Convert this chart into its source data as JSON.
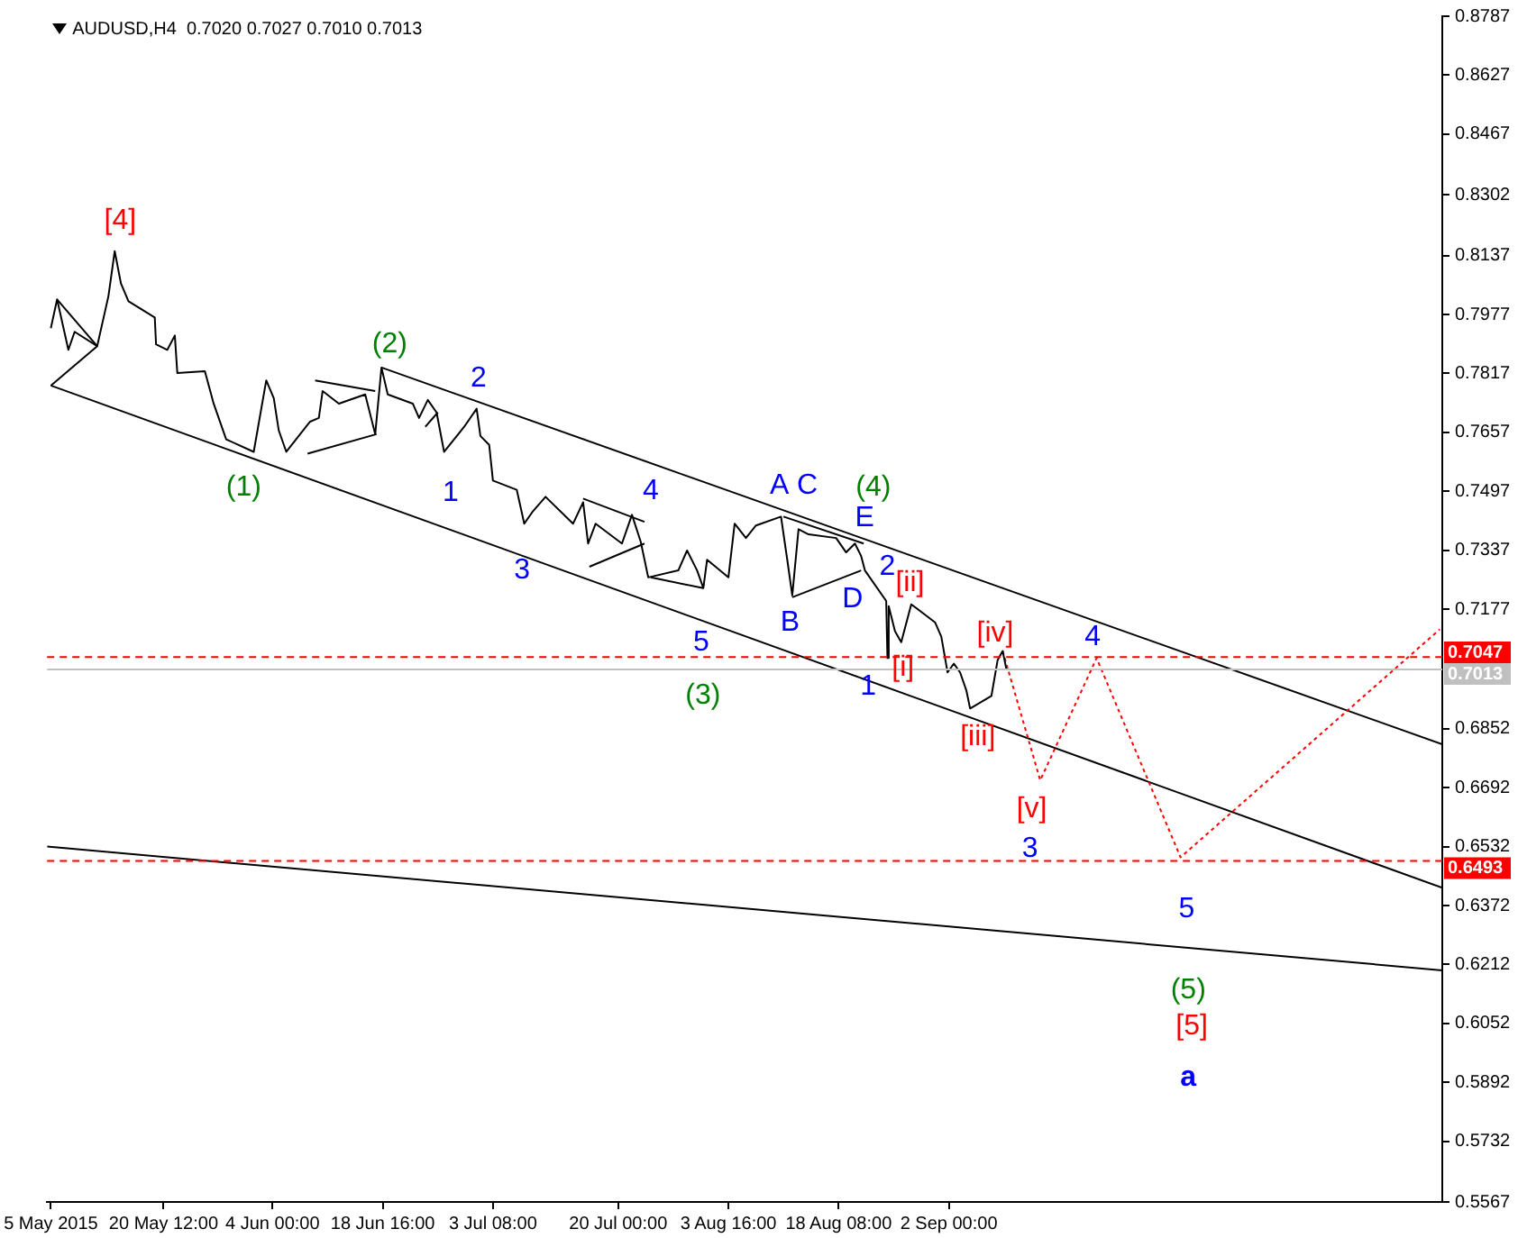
{
  "chart_data": {
    "type": "line",
    "title": "AUDUSD,H4  0.7020 0.7027 0.7010 0.7013",
    "xlim": [
      "2015-05-05T00:00",
      "2015-11-06T16:00"
    ],
    "xticks": [
      {
        "value": "2015-05-05T12:00",
        "label": "5 May 2015"
      },
      {
        "value": "2015-05-20T12:00",
        "label": "20 May 12:00"
      },
      {
        "value": "2015-06-04T00:00",
        "label": "4 Jun 00:00"
      },
      {
        "value": "2015-06-18T16:00",
        "label": "18 Jun 16:00"
      },
      {
        "value": "2015-07-03T08:00",
        "label": "3 Jul 08:00"
      },
      {
        "value": "2015-07-20T00:00",
        "label": "20 Jul 00:00"
      },
      {
        "value": "2015-08-03T16:00",
        "label": "3 Aug 16:00"
      },
      {
        "value": "2015-08-18T08:00",
        "label": "18 Aug 08:00"
      },
      {
        "value": "2015-09-02T00:00",
        "label": "2 Sep 00:00"
      }
    ],
    "ylim": [
      0.5567,
      0.8787
    ],
    "yticks": [
      0.5567,
      0.5732,
      0.5892,
      0.6052,
      0.6212,
      0.6372,
      0.6532,
      0.6692,
      0.6852,
      0.7177,
      0.7337,
      0.7497,
      0.7657,
      0.7817,
      0.7977,
      0.8137,
      0.8302,
      0.8467,
      0.8627,
      0.8787
    ],
    "grid": false,
    "legend": false,
    "marker": "none",
    "series": [
      {
        "color": "#000000",
        "x": [
          "2015-05-05T12:00",
          "2015-05-06T08:00",
          "2015-05-07T20:00",
          "2015-05-08T16:00",
          "2015-05-11T16:00",
          "2015-05-13T04:00",
          "2015-05-14T00:00",
          "2015-05-14T20:00",
          "2015-05-15T20:00",
          "2015-05-19T08:00",
          "2015-05-19T12:00",
          "2015-05-21T00:00",
          "2015-05-22T00:00",
          "2015-05-22T08:00",
          "2015-05-26T00:00",
          "2015-05-27T04:00",
          "2015-05-28T20:00",
          "2015-06-01T12:00",
          "2015-06-03T04:00",
          "2015-06-04T04:00",
          "2015-06-04T20:00",
          "2015-06-05T20:00",
          "2015-06-09T00:00",
          "2015-06-10T04:00",
          "2015-06-10T16:00",
          "2015-06-12T20:00",
          "2015-06-16T08:00",
          "2015-06-17T16:00",
          "2015-06-18T12:00",
          "2015-06-19T08:00",
          "2015-06-22T16:00",
          "2015-06-23T12:00",
          "2015-06-24T16:00",
          "2015-06-25T20:00",
          "2015-06-26T20:00",
          "2015-06-29T12:00",
          "2015-07-01T04:00",
          "2015-07-01T16:00",
          "2015-07-02T20:00",
          "2015-07-03T08:00",
          "2015-07-06T12:00",
          "2015-07-07T12:00",
          "2015-07-08T16:00",
          "2015-07-10T08:00",
          "2015-07-14T00:00",
          "2015-07-15T08:00",
          "2015-07-16T00:00",
          "2015-07-17T00:00",
          "2015-07-20T12:00",
          "2015-07-21T20:00",
          "2015-07-23T00:00",
          "2015-07-24T00:00",
          "2015-07-28T00:00",
          "2015-07-29T04:00",
          "2015-07-30T12:00",
          "2015-07-31T08:00",
          "2015-07-31T20:00",
          "2015-08-03T16:00",
          "2015-08-04T12:00",
          "2015-08-06T00:00",
          "2015-08-07T08:00",
          "2015-08-10T16:00",
          "2015-08-11T12:00",
          "2015-08-12T04:00",
          "2015-08-13T00:00",
          "2015-08-14T08:00",
          "2015-08-18T00:00",
          "2015-08-19T08:00",
          "2015-08-20T12:00",
          "2015-08-21T08:00",
          "2015-08-21T20:00",
          "2015-08-24T16:00",
          "2015-08-24T20:00",
          "2015-08-25T00:00",
          "2015-08-25T20:00",
          "2015-08-26T16:00",
          "2015-08-28T00:00",
          "2015-08-31T04:00",
          "2015-09-01T00:00",
          "2015-09-01T20:00",
          "2015-09-02T16:00",
          "2015-09-03T12:00",
          "2015-09-04T08:00",
          "2015-09-04T20:00",
          "2015-09-07T16:00",
          "2015-09-08T12:00",
          "2015-09-09T04:00",
          "2015-09-09T16:00"
        ],
        "values": [
          0.794,
          0.8018,
          0.7881,
          0.793,
          0.7891,
          0.8027,
          0.8149,
          0.8061,
          0.8013,
          0.7969,
          0.7896,
          0.7881,
          0.792,
          0.7818,
          0.7823,
          0.7735,
          0.7638,
          0.7604,
          0.7798,
          0.775,
          0.7662,
          0.7604,
          0.7686,
          0.7696,
          0.7769,
          0.7735,
          0.776,
          0.7652,
          0.7833,
          0.776,
          0.7735,
          0.7696,
          0.7745,
          0.7711,
          0.7604,
          0.7672,
          0.7721,
          0.7647,
          0.7623,
          0.7526,
          0.7501,
          0.7409,
          0.7443,
          0.7482,
          0.7409,
          0.7467,
          0.7355,
          0.7409,
          0.7355,
          0.7433,
          0.736,
          0.7263,
          0.7282,
          0.7336,
          0.7282,
          0.7234,
          0.7311,
          0.7263,
          0.7409,
          0.737,
          0.7404,
          0.7428,
          0.7311,
          0.7214,
          0.7394,
          0.738,
          0.737,
          0.7331,
          0.7355,
          0.7321,
          0.7282,
          0.7199,
          0.7044,
          0.7185,
          0.7117,
          0.7087,
          0.719,
          0.7141,
          0.7102,
          0.7005,
          0.7029,
          0.7005,
          0.6956,
          0.6907,
          0.6941,
          0.7039,
          0.7063,
          0.7013
        ]
      },
      {
        "color": "#ff0000",
        "line_style": "dotted",
        "x": [
          "2015-09-09T04:00",
          "2015-09-14T04:00",
          "2015-09-21T16:00",
          "2015-10-02T20:00",
          "2015-11-06T08:00"
        ],
        "values": [
          0.7063,
          0.6712,
          0.7044,
          0.6503,
          0.7122
        ]
      },
      {
        "color": "#000000",
        "x": [
          "2015-06-18T12:00",
          "2015-11-06T16:00"
        ],
        "values": [
          0.7833,
          0.681
        ]
      },
      {
        "color": "#000000",
        "x": [
          "2015-05-05T12:00",
          "2015-11-06T16:00"
        ],
        "values": [
          0.7784,
          0.642
        ]
      },
      {
        "color": "#000000",
        "x": [
          "2015-05-05T00:00",
          "2015-11-06T16:00"
        ],
        "values": [
          0.6532,
          0.6196
        ]
      },
      {
        "color": "#000000",
        "x": [
          "2015-05-05T12:00",
          "2015-05-11T16:00"
        ],
        "values": [
          0.7784,
          0.7891
        ]
      },
      {
        "color": "#000000",
        "x": [
          "2015-05-06T08:00",
          "2015-05-11T16:00"
        ],
        "values": [
          0.8018,
          0.7891
        ]
      },
      {
        "color": "#000000",
        "x": [
          "2015-06-09T16:00",
          "2015-06-17T16:00"
        ],
        "values": [
          0.7798,
          0.7769
        ]
      },
      {
        "color": "#000000",
        "x": [
          "2015-06-08T16:00",
          "2015-06-17T20:00"
        ],
        "values": [
          0.7599,
          0.7652
        ]
      },
      {
        "color": "#000000",
        "x": [
          "2015-06-24T08:00",
          "2015-06-26T00:00"
        ],
        "values": [
          0.7672,
          0.7711
        ]
      },
      {
        "color": "#000000",
        "x": [
          "2015-07-15T08:00",
          "2015-07-23T12:00"
        ],
        "values": [
          0.7477,
          0.7414
        ]
      },
      {
        "color": "#000000",
        "x": [
          "2015-07-16T04:00",
          "2015-07-23T12:00"
        ],
        "values": [
          0.7292,
          0.7355
        ]
      },
      {
        "color": "#000000",
        "x": [
          "2015-07-24T08:00",
          "2015-07-31T08:00"
        ],
        "values": [
          0.7263,
          0.7234
        ]
      },
      {
        "color": "#000000",
        "x": [
          "2015-08-11T00:00",
          "2015-08-21T16:00"
        ],
        "values": [
          0.7428,
          0.7355
        ]
      },
      {
        "color": "#000000",
        "x": [
          "2015-08-12T04:00",
          "2015-08-21T08:00"
        ],
        "values": [
          0.7209,
          0.7282
        ]
      }
    ],
    "ref_lines": [
      {
        "axis": "y",
        "value": 0.7047,
        "label": "0.7047",
        "color": "#ff0000",
        "line_style": "dashed"
      },
      {
        "axis": "y",
        "value": 0.6493,
        "label": "0.6493",
        "color": "#ff0000",
        "line_style": "dashed"
      },
      {
        "axis": "y",
        "value": 0.7013,
        "label": "0.7013",
        "color": "#c0c0c0",
        "line_style": "solid"
      }
    ],
    "annotations": [
      "[4]",
      "(2)",
      "2",
      "(1)",
      "1",
      "3",
      "4",
      "5",
      "(3)",
      "A",
      "C",
      "(4)",
      "E",
      "2",
      "D",
      "B",
      "[ii]",
      "[i]",
      "1",
      "[iii]",
      "[iv]",
      "4",
      "[v]",
      "3",
      "5",
      "(5)",
      "[5]",
      "a"
    ]
  }
}
